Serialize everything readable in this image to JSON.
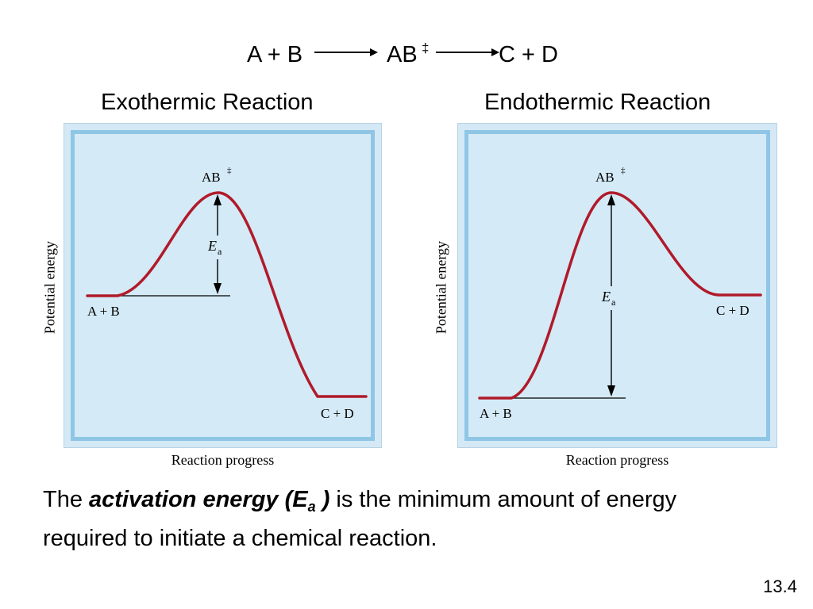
{
  "equation": {
    "reactants": "A + B",
    "complex": "AB",
    "complex_mark": "‡",
    "products": "C + D"
  },
  "panels": [
    {
      "heading": "Exothermic Reaction",
      "peak_label": "AB",
      "peak_mark": "‡",
      "ea_label": "E",
      "ea_sub": "a",
      "reactant_label": "A + B",
      "product_label": "C + D",
      "y_axis_label": "Potential energy",
      "x_axis_label": "Reaction progress"
    },
    {
      "heading": "Endothermic Reaction",
      "peak_label": "AB",
      "peak_mark": "‡",
      "ea_label": "E",
      "ea_sub": "a",
      "reactant_label": "A + B",
      "product_label": "C + D",
      "y_axis_label": "Potential energy",
      "x_axis_label": "Reaction progress"
    }
  ],
  "caption": {
    "prefix": "The ",
    "term": "activation energy (E",
    "term_sub": "a",
    "term_close": " )",
    "rest": " is the minimum amount of energy required to initiate a chemical reaction."
  },
  "slide_number": "13.4",
  "colors": {
    "curve": "#b01a2a",
    "panel_fill": "#d4eaf6",
    "panel_border": "#8fc6e6"
  }
}
